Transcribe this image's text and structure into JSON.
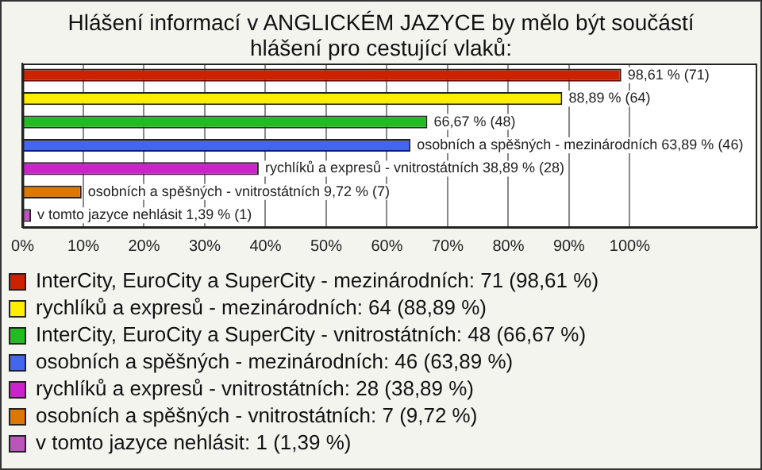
{
  "chart_data": {
    "type": "bar",
    "orientation": "horizontal",
    "stacked": true,
    "title": "Hlášení informací v ANGLICKÉM JAZYCE by mělo být součástí hlášení pro cestující vlaků:",
    "categories": [
      null,
      null,
      null,
      null,
      null,
      null,
      null
    ],
    "series": [
      {
        "name": "InterCity, EuroCity a SuperCity - mezinárodních: 71 (98,61 %)",
        "color": "#cc2200",
        "values": [
          98.61,
          null,
          null,
          null,
          null,
          null,
          null
        ],
        "value_labels": [
          "98,61 % (71)",
          null,
          null,
          null,
          null,
          null,
          null
        ]
      },
      {
        "name": "rychlíků a expresů - mezinárodních: 64 (88,89 %)",
        "color": "#ffee00",
        "values": [
          null,
          88.89,
          null,
          null,
          null,
          null,
          null
        ],
        "value_labels": [
          null,
          "88,89 % (64)",
          null,
          null,
          null,
          null,
          null
        ]
      },
      {
        "name": "InterCity, EuroCity a SuperCity - vnitrostátních: 48 (66,67 %)",
        "color": "#22bb22",
        "values": [
          null,
          null,
          66.67,
          null,
          null,
          null,
          null
        ],
        "value_labels": [
          null,
          null,
          "66,67 % (48)",
          null,
          null,
          null,
          null
        ]
      },
      {
        "name": "osobních a spěšných - mezinárodních: 46 (63,89 %)",
        "color": "#4466ee",
        "values": [
          null,
          null,
          null,
          63.89,
          null,
          null,
          null
        ],
        "value_labels": [
          null,
          null,
          null,
          "osobních a spěšných - mezinárodních 63,89 % (46)",
          null,
          null,
          null
        ]
      },
      {
        "name": "rychlíků a expresů - vnitrostátních: 28 (38,89 %)",
        "color": "#cc22cc",
        "values": [
          null,
          null,
          null,
          null,
          38.89,
          null,
          null
        ],
        "value_labels": [
          null,
          null,
          null,
          null,
          "rychlíků a expresů - vnitrostátních 38,89 % (28)",
          null,
          null
        ]
      },
      {
        "name": "osobních a spěšných - vnitrostátních: 7 (9,72 %)",
        "color": "#dd7700",
        "values": [
          null,
          null,
          null,
          null,
          null,
          9.72,
          null
        ],
        "value_labels": [
          null,
          null,
          null,
          null,
          null,
          "osobních a spěšných - vnitrostátních 9,72 % (7)",
          null
        ]
      },
      {
        "name": "v tomto jazyce nehlásit: 1 (1,39 %)",
        "color": "#bb55bb",
        "values": [
          null,
          null,
          null,
          null,
          null,
          null,
          1.39
        ],
        "value_labels": [
          null,
          null,
          null,
          null,
          null,
          null,
          "v tomto jazyce nehlásit 1,39 % (1)"
        ]
      }
    ],
    "xlim": [
      0,
      121
    ],
    "xticks": [
      {
        "value": 0,
        "label": "0%"
      },
      {
        "value": 10,
        "label": "10%"
      },
      {
        "value": 20,
        "label": "20%"
      },
      {
        "value": 30,
        "label": "30%"
      },
      {
        "value": 40,
        "label": "40%"
      },
      {
        "value": 50,
        "label": "50%"
      },
      {
        "value": 60,
        "label": "60%"
      },
      {
        "value": 70,
        "label": "70%"
      },
      {
        "value": 80,
        "label": "80%"
      },
      {
        "value": 90,
        "label": "90%"
      },
      {
        "value": 100,
        "label": "100%"
      }
    ],
    "grid": "x",
    "legend": "bottom",
    "tick_labels": "x"
  }
}
